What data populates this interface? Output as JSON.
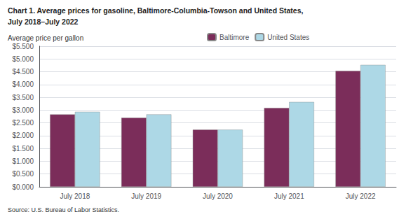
{
  "chart_data": {
    "type": "bar",
    "title": "Chart 1. Average prices for gasoline, Baltimore-Columbia-Towson and United States,",
    "subtitle": "July 2018–July 2022",
    "y_label": "Average price per gallon",
    "annotations": [
      "Source: U.S. Bureau of Labor Statistics."
    ],
    "categories": [
      "July 2018",
      "July 2019",
      "July 2020",
      "July 2021",
      "July 2022"
    ],
    "series": [
      {
        "name": "Baltimore",
        "color": "#7B2D5A",
        "values": [
          2.833,
          2.7,
          2.233,
          3.083,
          4.533
        ]
      },
      {
        "name": "United States",
        "color": "#ADD8E6",
        "values": [
          2.933,
          2.833,
          2.233,
          3.317,
          4.767
        ]
      }
    ],
    "ylim": [
      0,
      5.5
    ],
    "yticks": [
      {
        "value": 0.0,
        "label": "$0.000"
      },
      {
        "value": 0.5,
        "label": "$0.500"
      },
      {
        "value": 1.0,
        "label": "$1.000"
      },
      {
        "value": 1.5,
        "label": "$1.500"
      },
      {
        "value": 2.0,
        "label": "$2.000"
      },
      {
        "value": 2.5,
        "label": "$2.500"
      },
      {
        "value": 3.0,
        "label": "$3.000"
      },
      {
        "value": 3.5,
        "label": "$3.500"
      },
      {
        "value": 4.0,
        "label": "$4.000"
      },
      {
        "value": 4.5,
        "label": "$4.500"
      },
      {
        "value": 5.0,
        "label": "$5.000"
      },
      {
        "value": 5.5,
        "label": "$5.500"
      }
    ],
    "grid": true,
    "legend": "top"
  }
}
